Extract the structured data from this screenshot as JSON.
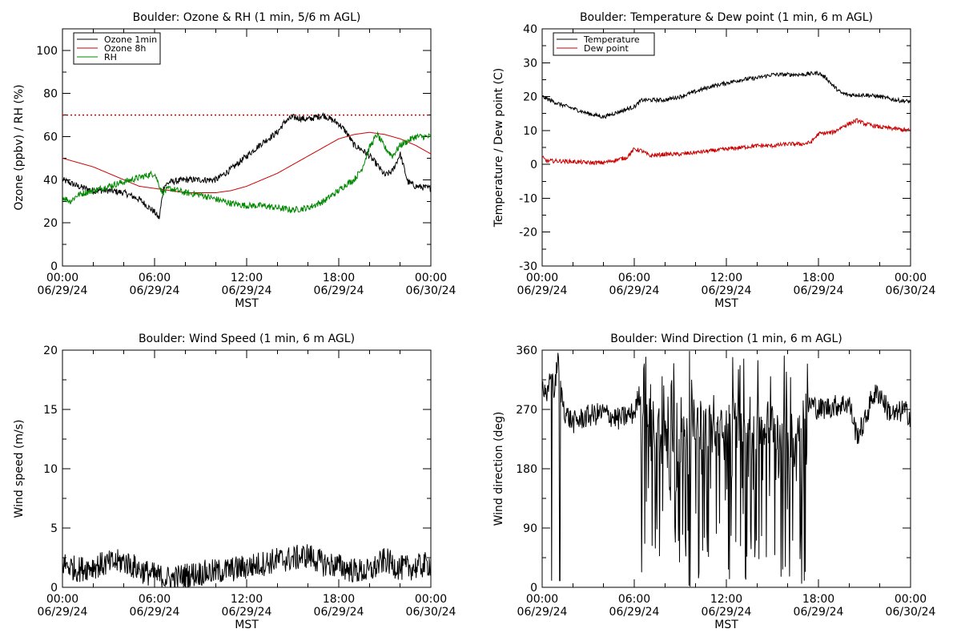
{
  "chart_data": [
    {
      "type": "line",
      "title": "Boulder: Ozone & RH (1 min, 5/6 m AGL)",
      "xlabel": "MST",
      "ylabel": "Ozone (ppbv) / RH (%)",
      "x_range_hours": [
        0,
        24
      ],
      "x_ticks": [
        {
          "time": "00:00",
          "date": "06/29/24"
        },
        {
          "time": "06:00",
          "date": "06/29/24"
        },
        {
          "time": "12:00",
          "date": "06/29/24"
        },
        {
          "time": "18:00",
          "date": "06/29/24"
        },
        {
          "time": "00:00",
          "date": "06/30/24"
        }
      ],
      "ylim": [
        0,
        110
      ],
      "y_ticks": [
        0,
        20,
        40,
        60,
        80,
        100
      ],
      "legend_position": "top-left",
      "reference_lines": [
        {
          "y": 70,
          "color": "#cc0000",
          "style": "dotted"
        }
      ],
      "series": [
        {
          "name": "Ozone 1min",
          "color": "#000000",
          "x": [
            0,
            1,
            2,
            3,
            4,
            5,
            5.5,
            6,
            6.3,
            6.6,
            7,
            8,
            9,
            10,
            11,
            12,
            13,
            14,
            14.5,
            15,
            16,
            17,
            17.5,
            18,
            18.5,
            19,
            19.5,
            20,
            20.5,
            21,
            21.5,
            22,
            22.5,
            23,
            24
          ],
          "y": [
            40,
            37,
            35,
            35,
            34,
            31,
            28,
            25,
            22,
            37,
            39,
            40,
            40,
            40,
            45,
            51,
            57,
            62,
            67,
            69,
            68,
            70,
            68,
            66,
            62,
            56,
            54,
            51,
            47,
            42,
            44,
            52,
            39,
            37,
            36
          ]
        },
        {
          "name": "Ozone 8h",
          "color": "#cc0000",
          "x": [
            0,
            1,
            2,
            3,
            4,
            5,
            6,
            7,
            8,
            9,
            10,
            11,
            12,
            13,
            14,
            15,
            16,
            17,
            18,
            19,
            20,
            21,
            22,
            23,
            24
          ],
          "y": [
            50,
            48,
            46,
            43,
            40,
            37,
            36,
            35,
            34,
            34,
            34,
            35,
            37,
            40,
            43,
            47,
            51,
            55,
            59,
            61,
            62,
            61,
            59,
            56,
            52
          ]
        },
        {
          "name": "RH",
          "color": "#008800",
          "x": [
            0,
            0.5,
            1,
            2,
            3,
            4,
            5,
            5.5,
            6,
            6.5,
            7,
            8,
            9,
            10,
            11,
            12,
            13,
            14,
            15,
            16,
            17,
            18,
            18.5,
            19,
            19.5,
            20,
            20.5,
            21,
            21.5,
            22,
            23,
            24
          ],
          "y": [
            32,
            30,
            33,
            35,
            37,
            39,
            41,
            42,
            43,
            34,
            36,
            34,
            33,
            31,
            29,
            28,
            28,
            27,
            26,
            27,
            30,
            35,
            38,
            40,
            45,
            55,
            61,
            55,
            51,
            56,
            60,
            60
          ]
        }
      ]
    },
    {
      "type": "line",
      "title": "Boulder: Temperature & Dew point (1 min, 6 m AGL)",
      "xlabel": "MST",
      "ylabel": "Temperature / Dew point (C)",
      "x_range_hours": [
        0,
        24
      ],
      "x_ticks": [
        {
          "time": "00:00",
          "date": "06/29/24"
        },
        {
          "time": "06:00",
          "date": "06/29/24"
        },
        {
          "time": "12:00",
          "date": "06/29/24"
        },
        {
          "time": "18:00",
          "date": "06/29/24"
        },
        {
          "time": "00:00",
          "date": "06/30/24"
        }
      ],
      "ylim": [
        -30,
        40
      ],
      "y_ticks": [
        -30,
        -20,
        -10,
        0,
        10,
        20,
        30,
        40
      ],
      "legend_position": "top-left",
      "series": [
        {
          "name": "Temperature",
          "color": "#000000",
          "x": [
            0,
            1,
            2,
            3,
            4,
            5,
            6,
            6.5,
            7,
            8,
            9,
            10,
            11,
            12,
            13,
            14,
            15,
            16,
            17,
            18,
            18.5,
            19,
            19.5,
            20,
            21,
            22,
            23,
            24
          ],
          "y": [
            20,
            18,
            16.5,
            15,
            14,
            15.5,
            17,
            19,
            19,
            19,
            20,
            21.5,
            23,
            24,
            25,
            25.5,
            26.5,
            26.5,
            26.5,
            27,
            25.5,
            23,
            21,
            20.5,
            20.5,
            20,
            19,
            18.5
          ]
        },
        {
          "name": "Dew point",
          "color": "#cc0000",
          "x": [
            0,
            0.3,
            1,
            2,
            3,
            4,
            5,
            5.5,
            6,
            6.5,
            7,
            8,
            9,
            10,
            11,
            12,
            13,
            14,
            15,
            16,
            17,
            17.5,
            18,
            19,
            19.5,
            20,
            20.5,
            21,
            22,
            23,
            24
          ],
          "y": [
            2,
            1,
            1,
            0.8,
            0.5,
            0.5,
            1.5,
            2,
            4.5,
            4,
            2.5,
            3,
            3,
            3.5,
            4,
            4.5,
            5,
            5.5,
            5.5,
            6,
            6,
            6.5,
            9,
            9.5,
            11,
            12,
            13,
            12,
            11,
            10.5,
            10
          ]
        }
      ]
    },
    {
      "type": "line",
      "title": "Boulder: Wind Speed (1 min, 6 m AGL)",
      "xlabel": "MST",
      "ylabel": "Wind speed (m/s)",
      "x_range_hours": [
        0,
        24
      ],
      "x_ticks": [
        {
          "time": "00:00",
          "date": "06/29/24"
        },
        {
          "time": "06:00",
          "date": "06/29/24"
        },
        {
          "time": "12:00",
          "date": "06/29/24"
        },
        {
          "time": "18:00",
          "date": "06/29/24"
        },
        {
          "time": "00:00",
          "date": "06/30/24"
        }
      ],
      "ylim": [
        0,
        20
      ],
      "y_ticks": [
        0,
        5,
        10,
        15,
        20
      ],
      "series": [
        {
          "name": "",
          "color": "#000000",
          "x": [
            0,
            1,
            2,
            3,
            4,
            5,
            6,
            7,
            8,
            9,
            10,
            11,
            12,
            13,
            14,
            15,
            16,
            17,
            18,
            19,
            20,
            21,
            22,
            23,
            24
          ],
          "y": [
            2,
            1.5,
            1.8,
            2,
            2.2,
            1.5,
            1.0,
            0.7,
            1.0,
            1.2,
            1.3,
            1.5,
            1.7,
            2.0,
            2.3,
            2.4,
            2.7,
            2.0,
            1.8,
            1.4,
            1.3,
            2.3,
            1.6,
            1.7,
            2.0
          ]
        }
      ]
    },
    {
      "type": "line",
      "title": "Boulder: Wind Direction (1 min, 6 m AGL)",
      "xlabel": "MST",
      "ylabel": "Wind direction (deg)",
      "x_range_hours": [
        0,
        24
      ],
      "x_ticks": [
        {
          "time": "00:00",
          "date": "06/29/24"
        },
        {
          "time": "06:00",
          "date": "06/29/24"
        },
        {
          "time": "12:00",
          "date": "06/29/24"
        },
        {
          "time": "18:00",
          "date": "06/29/24"
        },
        {
          "time": "00:00",
          "date": "06/30/24"
        }
      ],
      "ylim": [
        0,
        360
      ],
      "y_ticks": [
        0,
        90,
        180,
        270,
        360
      ],
      "series": [
        {
          "name": "",
          "color": "#000000",
          "x": [
            0,
            0.3,
            0.6,
            0.8,
            1.0,
            1.2,
            1.5,
            2,
            3,
            4,
            5,
            5.5,
            6,
            6.3,
            6.5,
            7,
            8,
            9,
            10,
            11,
            12,
            13,
            14,
            15,
            16,
            17,
            17.2,
            17.5,
            18,
            19,
            20,
            20.5,
            21,
            21.5,
            22,
            22.5,
            23,
            23.5,
            24
          ],
          "y": [
            310,
            280,
            340,
            290,
            350,
            300,
            265,
            250,
            260,
            265,
            255,
            260,
            265,
            290,
            300,
            250,
            240,
            220,
            250,
            240,
            230,
            260,
            240,
            250,
            230,
            260,
            270,
            280,
            270,
            275,
            280,
            230,
            250,
            290,
            295,
            270,
            260,
            270,
            260
          ]
        }
      ]
    }
  ]
}
